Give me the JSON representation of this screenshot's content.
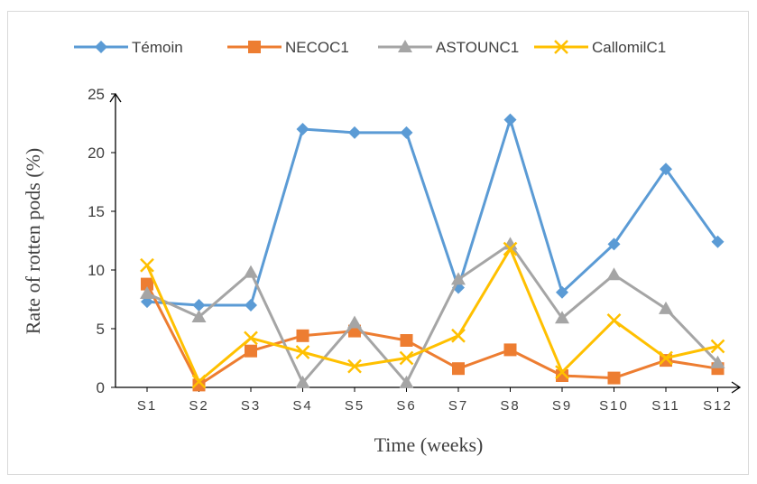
{
  "chart_data": {
    "type": "line",
    "title": "",
    "xlabel": "Time (weeks)",
    "ylabel": "Rate of rotten pods (%)",
    "ylim": [
      0,
      25
    ],
    "yticks": [
      0,
      5,
      10,
      15,
      20,
      25
    ],
    "grid": false,
    "legend_position": "top",
    "categories": [
      "S1",
      "S2",
      "S3",
      "S4",
      "S5",
      "S6",
      "S7",
      "S8",
      "S9",
      "S10",
      "S11",
      "S12"
    ],
    "series": [
      {
        "name": "Témoin",
        "color": "#5b9bd5",
        "marker": "diamond",
        "values": [
          7.3,
          7.0,
          7.0,
          22.0,
          21.7,
          21.7,
          8.5,
          22.8,
          8.1,
          12.2,
          18.6,
          12.4
        ]
      },
      {
        "name": "NECOC1",
        "color": "#ed7d31",
        "marker": "square",
        "values": [
          8.8,
          0.2,
          3.1,
          4.4,
          4.8,
          4.0,
          1.6,
          3.2,
          1.0,
          0.8,
          2.3,
          1.6
        ]
      },
      {
        "name": "ASTOUNC1",
        "color": "#a5a5a5",
        "marker": "triangle",
        "values": [
          8.0,
          6.0,
          9.8,
          0.4,
          5.5,
          0.4,
          9.2,
          12.2,
          5.9,
          9.6,
          6.7,
          2.1
        ]
      },
      {
        "name": "CallomilC1",
        "color": "#ffc000",
        "marker": "x",
        "values": [
          10.4,
          0.5,
          4.2,
          3.0,
          1.8,
          2.5,
          4.4,
          11.8,
          1.3,
          5.7,
          2.5,
          3.5
        ]
      }
    ]
  }
}
